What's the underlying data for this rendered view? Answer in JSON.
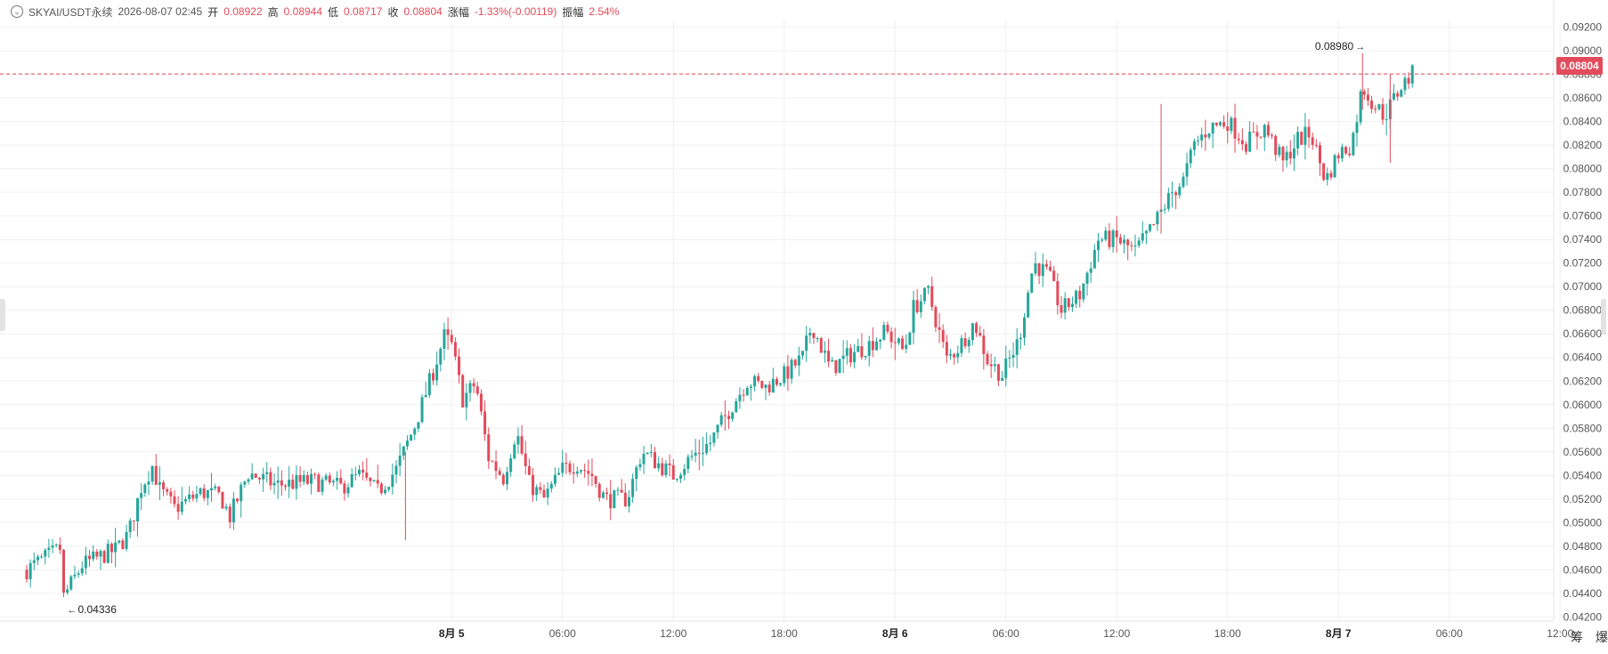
{
  "header": {
    "symbol": "SKYAI/USDT永续",
    "datetime": "2026-08-07 02:45",
    "open_label": "开",
    "open_value": "0.08922",
    "high_label": "高",
    "high_value": "0.08944",
    "low_label": "低",
    "low_value": "0.08717",
    "close_label": "收",
    "close_value": "0.08804",
    "change_label": "涨幅",
    "change_value": "-1.33%(-0.00119)",
    "amplitude_label": "振幅",
    "amplitude_value": "2.54%"
  },
  "current_price": "0.08804",
  "corner_buttons": [
    "筹",
    "爆"
  ],
  "colors": {
    "up": "#26a69a",
    "down": "#e24b5b",
    "grid": "#f0f0f0",
    "axis_text": "#555555"
  },
  "chart_data": {
    "type": "candlestick",
    "title": "",
    "ylim": [
      0.0418,
      0.0928
    ],
    "y_ticks": [
      "0.09200",
      "0.09000",
      "0.08800",
      "0.08600",
      "0.08400",
      "0.08200",
      "0.08000",
      "0.07800",
      "0.07600",
      "0.07400",
      "0.07200",
      "0.07000",
      "0.06800",
      "0.06600",
      "0.06400",
      "0.06200",
      "0.06000",
      "0.05800",
      "0.05600",
      "0.05400",
      "0.05200",
      "0.05000",
      "0.04800",
      "0.04600",
      "0.04400",
      "0.04200"
    ],
    "x_ticks": [
      {
        "label": "8月 5",
        "t": 23,
        "bold": true
      },
      {
        "label": "06:00",
        "t": 29,
        "bold": false
      },
      {
        "label": "12:00",
        "t": 35,
        "bold": false
      },
      {
        "label": "18:00",
        "t": 41,
        "bold": false
      },
      {
        "label": "8月 6",
        "t": 47,
        "bold": true
      },
      {
        "label": "06:00",
        "t": 53,
        "bold": false
      },
      {
        "label": "12:00",
        "t": 59,
        "bold": false
      },
      {
        "label": "18:00",
        "t": 65,
        "bold": false
      },
      {
        "label": "8月 7",
        "t": 71,
        "bold": true
      },
      {
        "label": "06:00",
        "t": 77,
        "bold": false
      },
      {
        "label": "12:00",
        "t": 83,
        "bold": false
      }
    ],
    "max_annotation": "0.08980",
    "min_annotation": "0.04336",
    "candles_note": "t = hours since first candle; ~5 candles per hour (12-min bars)",
    "anchors": [
      [
        0,
        0.046
      ],
      [
        1.8,
        0.0478
      ],
      [
        2.0,
        0.0437
      ],
      [
        3.0,
        0.0464
      ],
      [
        4.8,
        0.0477
      ],
      [
        5.5,
        0.049
      ],
      [
        6.2,
        0.053
      ],
      [
        6.8,
        0.0548
      ],
      [
        7.2,
        0.0528
      ],
      [
        8.0,
        0.0512
      ],
      [
        9.5,
        0.0526
      ],
      [
        10.5,
        0.0522
      ],
      [
        11.0,
        0.0505
      ],
      [
        12.0,
        0.0542
      ],
      [
        13.5,
        0.0532
      ],
      [
        15.5,
        0.0535
      ],
      [
        17.0,
        0.053
      ],
      [
        18.0,
        0.054
      ],
      [
        19.0,
        0.0526
      ],
      [
        20.0,
        0.0545
      ],
      [
        21.0,
        0.0582
      ],
      [
        22.0,
        0.0628
      ],
      [
        22.6,
        0.0658
      ],
      [
        23.0,
        0.065
      ],
      [
        23.6,
        0.0605
      ],
      [
        24.3,
        0.0618
      ],
      [
        25.0,
        0.0555
      ],
      [
        25.8,
        0.0538
      ],
      [
        26.5,
        0.0578
      ],
      [
        27.2,
        0.0533
      ],
      [
        28.0,
        0.052
      ],
      [
        29.0,
        0.0545
      ],
      [
        29.8,
        0.055
      ],
      [
        30.6,
        0.054
      ],
      [
        31.3,
        0.052
      ],
      [
        32.5,
        0.052
      ],
      [
        33.3,
        0.056
      ],
      [
        34.0,
        0.0552
      ],
      [
        35.0,
        0.054
      ],
      [
        36.0,
        0.0556
      ],
      [
        37.0,
        0.0568
      ],
      [
        38.0,
        0.0595
      ],
      [
        39.0,
        0.062
      ],
      [
        40.0,
        0.0615
      ],
      [
        41.0,
        0.0625
      ],
      [
        42.0,
        0.064
      ],
      [
        42.5,
        0.0668
      ],
      [
        43.5,
        0.063
      ],
      [
        44.5,
        0.0642
      ],
      [
        45.5,
        0.065
      ],
      [
        46.5,
        0.0662
      ],
      [
        47.5,
        0.0645
      ],
      [
        48.0,
        0.0682
      ],
      [
        48.8,
        0.0695
      ],
      [
        49.8,
        0.0638
      ],
      [
        50.5,
        0.065
      ],
      [
        51.3,
        0.067
      ],
      [
        52.0,
        0.0638
      ],
      [
        52.8,
        0.0625
      ],
      [
        53.7,
        0.0655
      ],
      [
        54.5,
        0.072
      ],
      [
        55.3,
        0.071
      ],
      [
        56.0,
        0.068
      ],
      [
        57.0,
        0.0693
      ],
      [
        58.0,
        0.074
      ],
      [
        59.0,
        0.074
      ],
      [
        60.0,
        0.073
      ],
      [
        61.0,
        0.0752
      ],
      [
        62.0,
        0.078
      ],
      [
        62.6,
        0.079
      ],
      [
        63.2,
        0.082
      ],
      [
        64.0,
        0.0835
      ],
      [
        65.0,
        0.084
      ],
      [
        66.0,
        0.0822
      ],
      [
        67.0,
        0.0835
      ],
      [
        68.0,
        0.0805
      ],
      [
        68.8,
        0.0825
      ],
      [
        69.5,
        0.083
      ],
      [
        70.3,
        0.079
      ],
      [
        71.0,
        0.0813
      ],
      [
        71.7,
        0.082
      ],
      [
        72.3,
        0.087
      ],
      [
        72.9,
        0.0855
      ],
      [
        73.5,
        0.0845
      ],
      [
        74.4,
        0.087
      ],
      [
        75.0,
        0.088
      ]
    ]
  }
}
